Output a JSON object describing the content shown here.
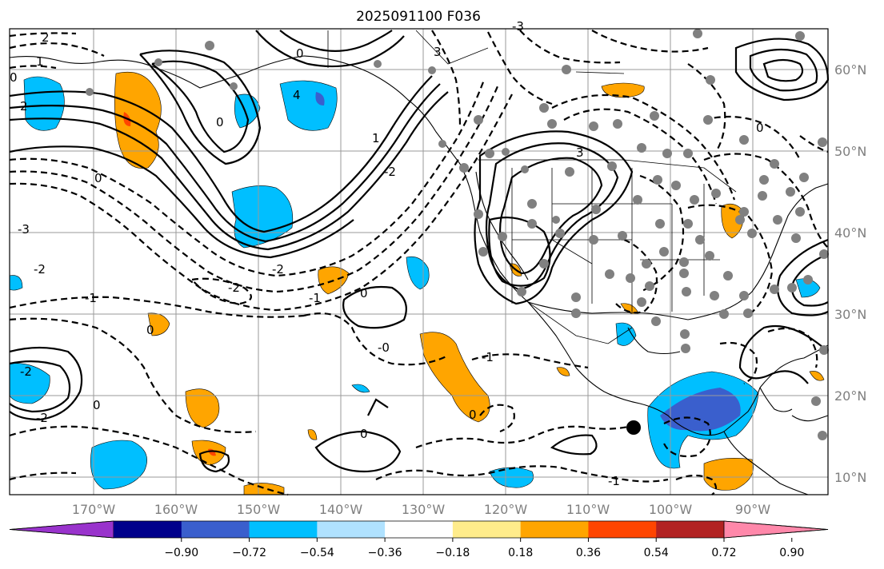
{
  "map": {
    "title": "2025091100 F036",
    "lon_labels": [
      "170°W",
      "160°W",
      "150°W",
      "140°W",
      "130°W",
      "120°W",
      "110°W",
      "100°W",
      "90°W"
    ],
    "lat_labels": [
      "60°N",
      "50°N",
      "40°N",
      "30°N",
      "20°N",
      "10°N"
    ],
    "contour_labels": [
      "2",
      "1",
      "0",
      "2",
      "4",
      "3",
      "0",
      "0",
      "3",
      "1",
      "0",
      "-2",
      "-3",
      "-2",
      "-2",
      "-2",
      "-1",
      "0",
      "0",
      "-0",
      "-1",
      "-2",
      "0",
      "0",
      "0",
      "-1",
      "-2",
      "-1",
      "-3",
      "0"
    ],
    "colorbar": {
      "ticks": [
        "−0.90",
        "−0.72",
        "−0.54",
        "−0.36",
        "−0.18",
        "0.18",
        "0.36",
        "0.54",
        "0.72",
        "0.90"
      ],
      "colors": [
        "#9933cc",
        "#00008b",
        "#3a5fcd",
        "#00bfff",
        "#b0e2ff",
        "#ffffff",
        "#ffec8b",
        "#ffa500",
        "#ff4500",
        "#b22222",
        "#ff88aa"
      ]
    },
    "colors": {
      "neg_light": "#00bfff",
      "neg_mid": "#3a5fcd",
      "pos_light": "#ffa500",
      "pos_mid": "#ff4500",
      "station": "#808080"
    }
  }
}
